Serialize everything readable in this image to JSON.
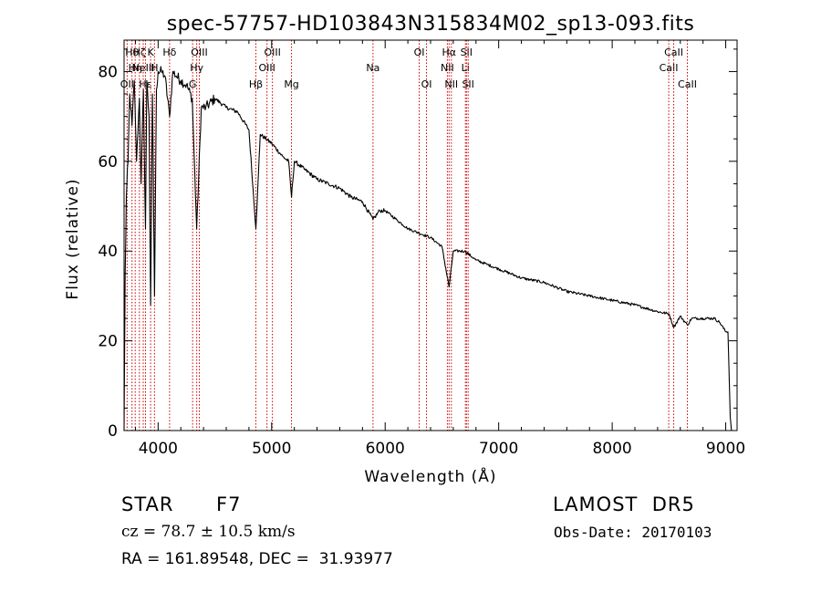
{
  "chart_data": {
    "type": "line",
    "title": "spec-57757-HD103843N315834M02_sp13-093.fits",
    "xlabel": "Wavelength (Å)",
    "ylabel": "Flux (relative)",
    "xlim": [
      3700,
      9100
    ],
    "ylim": [
      0,
      87
    ],
    "x_ticks": [
      4000,
      5000,
      6000,
      7000,
      8000,
      9000
    ],
    "y_ticks": [
      0,
      20,
      40,
      60,
      80
    ],
    "x_minor_step": 200,
    "y_minor_step": 5,
    "grid": false,
    "series": [
      {
        "x": [
          3700,
          3710,
          3720,
          3735,
          3750,
          3770,
          3790,
          3810,
          3835,
          3850,
          3870,
          3889,
          3900,
          3920,
          3934,
          3950,
          3968,
          3985,
          4000,
          4030,
          4060,
          4101,
          4130,
          4160,
          4200,
          4250,
          4300,
          4340,
          4380,
          4420,
          4500,
          4600,
          4700,
          4800,
          4861,
          4900,
          5000,
          5100,
          5150,
          5175,
          5200,
          5300,
          5400,
          5500,
          5600,
          5700,
          5800,
          5893,
          5950,
          6000,
          6100,
          6200,
          6300,
          6400,
          6500,
          6563,
          6600,
          6700,
          6800,
          6900,
          7000,
          7200,
          7400,
          7600,
          7800,
          8000,
          8200,
          8400,
          8500,
          8542,
          8600,
          8662,
          8700,
          8800,
          8900,
          8950,
          9000,
          9020,
          9040,
          9050
        ],
        "y": [
          0,
          35,
          52,
          60,
          75,
          68,
          78,
          60,
          74,
          55,
          76,
          45,
          78,
          70,
          28,
          75,
          30,
          76,
          80,
          80,
          79,
          70,
          80,
          79,
          78,
          77,
          74,
          45,
          72,
          72,
          74,
          72,
          71,
          67,
          45,
          66,
          64,
          61,
          60,
          52,
          60,
          58,
          56,
          55,
          54,
          52,
          51,
          47,
          49,
          49,
          47,
          45,
          44,
          43,
          41,
          32,
          40,
          40,
          38,
          37,
          36,
          34,
          33,
          31,
          30,
          29,
          28,
          26.5,
          26,
          23,
          25.5,
          23.5,
          25,
          25,
          25,
          24,
          22,
          22,
          3,
          0
        ]
      }
    ],
    "line_color": "#000000",
    "marker_color": "#cc0000",
    "line_markers": [
      {
        "x": 3727,
        "label": "OII",
        "row": 3
      },
      {
        "x": 3770,
        "label": "Hθ",
        "row": 1
      },
      {
        "x": 3798,
        "label": "Hη",
        "row": 2
      },
      {
        "x": 3835,
        "label": "Hζ",
        "row": 1
      },
      {
        "x": 3869,
        "label": "NeIII",
        "row": 2
      },
      {
        "x": 3889,
        "label": "Hε",
        "row": 3
      },
      {
        "x": 3934,
        "label": "K",
        "row": 1
      },
      {
        "x": 3968,
        "label": "H",
        "row": 2
      },
      {
        "x": 4101,
        "label": "Hδ",
        "row": 1
      },
      {
        "x": 4304,
        "label": "G",
        "row": 3
      },
      {
        "x": 4340,
        "label": "Hγ",
        "row": 2
      },
      {
        "x": 4363,
        "label": "OIII",
        "row": 1
      },
      {
        "x": 4861,
        "label": "Hβ",
        "row": 3
      },
      {
        "x": 4959,
        "label": "OIII",
        "row": 2
      },
      {
        "x": 5007,
        "label": "OIII",
        "row": 1
      },
      {
        "x": 5175,
        "label": "Mg",
        "row": 3
      },
      {
        "x": 5893,
        "label": "Na",
        "row": 2
      },
      {
        "x": 6300,
        "label": "OI",
        "row": 1
      },
      {
        "x": 6364,
        "label": "OI",
        "row": 3
      },
      {
        "x": 6548,
        "label": "NII",
        "row": 2
      },
      {
        "x": 6563,
        "label": "Hα",
        "row": 1
      },
      {
        "x": 6583,
        "label": "NII",
        "row": 3
      },
      {
        "x": 6707,
        "label": "Li",
        "row": 2
      },
      {
        "x": 6716,
        "label": "SII",
        "row": 1
      },
      {
        "x": 6731,
        "label": "SII",
        "row": 3
      },
      {
        "x": 8498,
        "label": "CaII",
        "row": 2
      },
      {
        "x": 8542,
        "label": "CaII",
        "row": 1
      },
      {
        "x": 8662,
        "label": "CaII",
        "row": 3
      }
    ]
  },
  "info": {
    "object_class": "STAR",
    "subclass": "F7",
    "survey": "LAMOST  DR5",
    "redshift": "cz = 78.7 ± 10.5 km/s",
    "obs_date": "Obs-Date: 20170103",
    "coords": "RA = 161.89548, DEC =  31.93977"
  }
}
